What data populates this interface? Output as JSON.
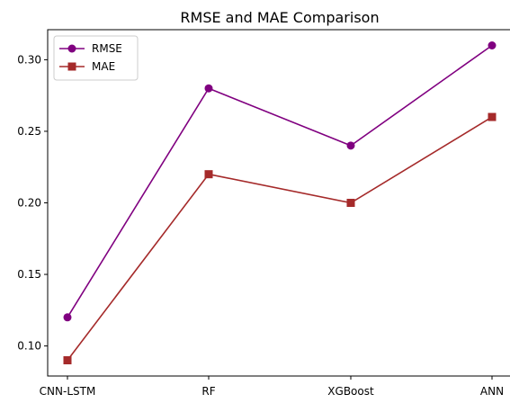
{
  "chart_data": {
    "type": "line",
    "title": "RMSE and MAE Comparison",
    "categories": [
      "CNN-LSTM",
      "RF",
      "XGBoost",
      "ANN"
    ],
    "series": [
      {
        "name": "RMSE",
        "values": [
          0.12,
          0.28,
          0.24,
          0.31
        ],
        "color": "#800080",
        "marker": "circle"
      },
      {
        "name": "MAE",
        "values": [
          0.09,
          0.22,
          0.2,
          0.26
        ],
        "color": "#a52a2a",
        "marker": "square"
      }
    ],
    "yticks": [
      "0.10",
      "0.15",
      "0.20",
      "0.25",
      "0.30"
    ],
    "ylim": [
      0.079,
      0.321
    ],
    "grid": false,
    "legend_position": "top-left"
  }
}
